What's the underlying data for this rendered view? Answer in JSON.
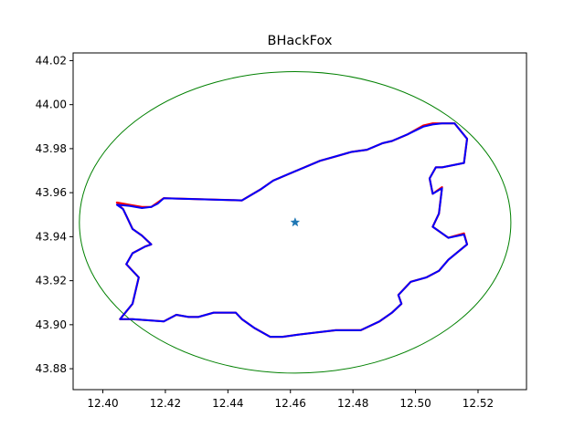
{
  "chart_data": {
    "type": "line",
    "title": "BHackFox",
    "xlabel": "",
    "ylabel": "",
    "xlim": [
      12.3905,
      12.5355
    ],
    "ylim": [
      43.8705,
      44.0235
    ],
    "xticks": [
      12.4,
      12.42,
      12.44,
      12.46,
      12.48,
      12.5,
      12.52
    ],
    "xtick_labels": [
      "12.40",
      "12.42",
      "12.44",
      "12.46",
      "12.48",
      "12.50",
      "12.52"
    ],
    "yticks": [
      43.88,
      43.9,
      43.92,
      43.94,
      43.96,
      43.98,
      44.0,
      44.02
    ],
    "ytick_labels": [
      "43.88",
      "43.90",
      "43.92",
      "43.94",
      "43.96",
      "43.98",
      "44.00",
      "44.02"
    ],
    "grid": false,
    "series": [
      {
        "kind": "line",
        "color": "#ff0000",
        "x": [
          12.4045,
          12.4085,
          12.4125,
          12.4155,
          12.4175,
          12.4195,
          12.4445,
          12.4505,
          12.4545,
          12.4595,
          12.4645,
          12.4695,
          12.4745,
          12.4795,
          12.4845,
          12.4895,
          12.4925,
          12.4975,
          12.5025,
          12.5055,
          12.5085,
          12.5125,
          12.5165,
          12.5155,
          12.5085,
          12.5065,
          12.5045,
          12.5055,
          12.5085,
          12.5075,
          12.5055,
          12.5105,
          12.5155,
          12.5165,
          12.5105,
          12.5075,
          12.5035,
          12.4985,
          12.4945,
          12.4955,
          12.4925,
          12.4885,
          12.4825,
          12.4745,
          12.4685,
          12.4625,
          12.4575,
          12.4535,
          12.4485,
          12.4445,
          12.4425,
          12.4355,
          12.4305,
          12.4275,
          12.4235,
          12.4195,
          12.4095,
          12.4055,
          12.4095,
          12.4115,
          12.4075,
          12.4095,
          12.4135,
          12.4155,
          12.4125,
          12.4095,
          12.4075,
          12.4065,
          12.4045
        ],
        "y": [
          43.9555,
          43.9545,
          43.9535,
          43.9535,
          43.9555,
          43.9575,
          43.9565,
          43.9615,
          43.9655,
          43.9685,
          43.9715,
          43.9745,
          43.9765,
          43.9785,
          43.9795,
          43.9825,
          43.9835,
          43.9865,
          43.9905,
          43.9915,
          43.9915,
          43.9915,
          43.9845,
          43.9735,
          43.9715,
          43.9715,
          43.9665,
          43.9595,
          43.9625,
          43.9505,
          43.9445,
          43.9395,
          43.9415,
          43.9365,
          43.9295,
          43.9245,
          43.9215,
          43.9195,
          43.9135,
          43.9095,
          43.9055,
          43.9015,
          43.8975,
          43.8975,
          43.8965,
          43.8955,
          43.8945,
          43.8945,
          43.8985,
          43.9025,
          43.9055,
          43.9055,
          43.9035,
          43.9035,
          43.9045,
          43.9015,
          43.9025,
          43.9025,
          43.9095,
          43.9215,
          43.9275,
          43.9325,
          43.9355,
          43.9365,
          43.9405,
          43.9435,
          43.9495,
          43.9525,
          43.9555
        ]
      },
      {
        "kind": "line",
        "color": "#0000ff",
        "x": [
          12.4045,
          12.4085,
          12.4125,
          12.4155,
          12.4175,
          12.4195,
          12.4445,
          12.4505,
          12.4545,
          12.4595,
          12.4645,
          12.4695,
          12.4745,
          12.4795,
          12.4845,
          12.4895,
          12.4925,
          12.4975,
          12.5025,
          12.5055,
          12.5085,
          12.5125,
          12.5165,
          12.5155,
          12.5085,
          12.5065,
          12.5045,
          12.5055,
          12.5085,
          12.5075,
          12.5055,
          12.5105,
          12.5155,
          12.5165,
          12.5105,
          12.5075,
          12.5035,
          12.4985,
          12.4945,
          12.4955,
          12.4925,
          12.4885,
          12.4825,
          12.4745,
          12.4685,
          12.4625,
          12.4575,
          12.4535,
          12.4485,
          12.4445,
          12.4425,
          12.4355,
          12.4305,
          12.4275,
          12.4235,
          12.4195,
          12.4095,
          12.4055,
          12.4095,
          12.4115,
          12.4075,
          12.4095,
          12.4135,
          12.4155,
          12.4125,
          12.4095,
          12.4075,
          12.4065,
          12.4045
        ],
        "y": [
          43.9545,
          43.954,
          43.953,
          43.9535,
          43.955,
          43.9575,
          43.9565,
          43.9615,
          43.9655,
          43.9685,
          43.9715,
          43.9745,
          43.9765,
          43.9785,
          43.9795,
          43.9825,
          43.9835,
          43.9865,
          43.99,
          43.991,
          43.9915,
          43.9915,
          43.9845,
          43.9735,
          43.9715,
          43.9715,
          43.9665,
          43.9595,
          43.962,
          43.9505,
          43.9445,
          43.9395,
          43.941,
          43.9365,
          43.9295,
          43.9245,
          43.9215,
          43.9195,
          43.9135,
          43.9095,
          43.9055,
          43.9015,
          43.8975,
          43.8975,
          43.8965,
          43.8955,
          43.8945,
          43.8945,
          43.8985,
          43.9025,
          43.9055,
          43.9055,
          43.9035,
          43.9035,
          43.9045,
          43.9015,
          43.9025,
          43.9025,
          43.9095,
          43.9215,
          43.9275,
          43.9325,
          43.9355,
          43.9365,
          43.9405,
          43.9435,
          43.9495,
          43.9525,
          43.9545
        ]
      }
    ],
    "circle": {
      "color": "#008000",
      "center": [
        12.4615,
        43.9465
      ],
      "rx": 0.069,
      "ry": 0.0685
    },
    "center_marker": {
      "shape": "star",
      "color": "#1f77b4",
      "x": 12.4615,
      "y": 43.9465
    }
  }
}
